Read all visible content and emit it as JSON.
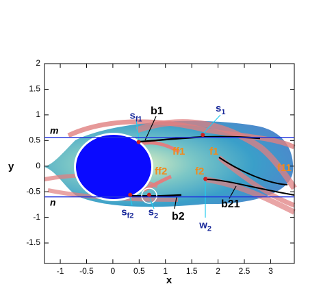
{
  "chart_data": {
    "type": "field",
    "x_label": "x",
    "y_label": "y",
    "xlim": [
      -1.3,
      3.45
    ],
    "ylim": [
      -1.9,
      2
    ],
    "xticks": [
      -1,
      -0.5,
      0,
      0.5,
      1,
      1.5,
      2,
      2.5,
      3
    ],
    "yticks": [
      -1.5,
      -1,
      -0.5,
      0,
      0.5,
      1,
      1.5,
      2
    ],
    "lines": [
      {
        "name": "m",
        "y": 0.56,
        "color": "#2233dd"
      },
      {
        "name": "n",
        "y": -0.6,
        "color": "#2233dd"
      }
    ],
    "points": [
      {
        "base": "s",
        "sub": "1",
        "x": 1.71,
        "y": 0.61,
        "color": "#cc2222"
      },
      {
        "base": "s",
        "sub": "f1",
        "x": 0.49,
        "y": 0.47,
        "color": "#cc2222"
      },
      {
        "base": "s",
        "sub": "f2",
        "x": 0.33,
        "y": -0.56,
        "color": "#cc2222"
      },
      {
        "base": "s",
        "sub": "2",
        "x": 0.69,
        "y": -0.56,
        "color": "#cc2222"
      },
      {
        "base": "w",
        "sub": "2",
        "x": 1.76,
        "y": -0.25,
        "color": "#cc2222"
      }
    ],
    "annotations": [
      "b1",
      "b2",
      "b21",
      "f1",
      "ff1",
      "f2",
      "ff2",
      "f11"
    ]
  }
}
